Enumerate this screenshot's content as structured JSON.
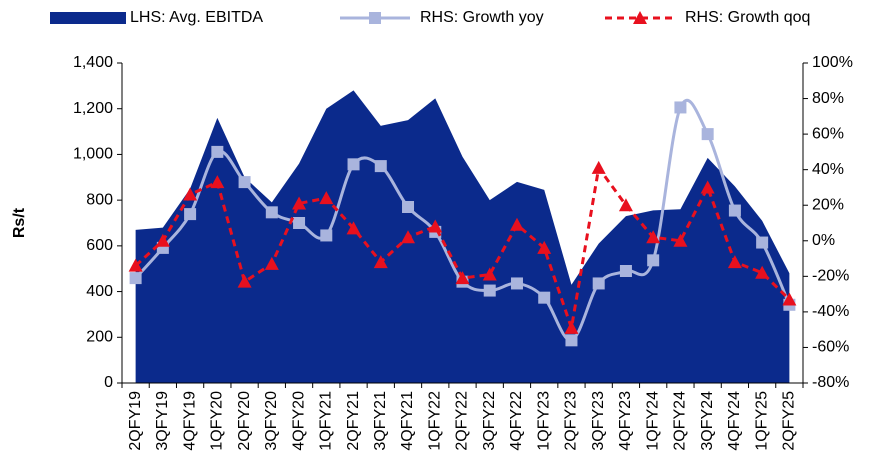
{
  "chart_data": {
    "type": "area-line",
    "y_label": "Rs/t",
    "categories": [
      "2QFY19",
      "3QFY19",
      "4QFY19",
      "1QFY20",
      "2QFY20",
      "3QFY20",
      "4QFY20",
      "1QFY21",
      "2QFY21",
      "3QFY21",
      "4QFY21",
      "1QFY22",
      "2QFY22",
      "3QFY22",
      "4QFY22",
      "1QFY23",
      "2QFY23",
      "3QFY23",
      "4QFY23",
      "1QFY24",
      "2QFY24",
      "3QFY24",
      "4QFY24",
      "1QFY25",
      "2QFY25"
    ],
    "series": [
      {
        "name": "LHS: Avg. EBITDA",
        "type": "area",
        "color": "#0b2a8c",
        "axis": "y",
        "values": [
          670,
          680,
          850,
          1160,
          900,
          790,
          960,
          1200,
          1280,
          1125,
          1150,
          1245,
          990,
          800,
          880,
          845,
          430,
          610,
          730,
          755,
          760,
          985,
          860,
          710,
          480
        ]
      },
      {
        "name": "RHS: Growth yoy",
        "type": "line",
        "color": "#a9b4dd",
        "axis": "y2",
        "marker": "square",
        "smooth": true,
        "values": [
          -21,
          -4,
          15,
          50,
          33,
          16,
          10,
          3,
          43,
          42,
          19,
          5,
          -23,
          -28,
          -24,
          -32,
          -56,
          -24,
          -17,
          -11,
          75,
          60,
          17,
          -1,
          -36
        ]
      },
      {
        "name": "RHS: Growth qoq",
        "type": "line",
        "color": "#e8101e",
        "axis": "y2",
        "marker": "triangle",
        "dashed": true,
        "values": [
          -14,
          0,
          26,
          33,
          -23,
          -13,
          21,
          24,
          7,
          -12,
          2,
          8,
          -21,
          -19,
          9,
          -4,
          -49,
          41,
          20,
          2,
          0,
          30,
          -12,
          -18,
          -33
        ]
      }
    ],
    "ylim": [
      0,
      1400
    ],
    "yticks": [
      0,
      200,
      400,
      600,
      800,
      {
        "value": 1000,
        "label": "1,000"
      },
      {
        "value": 1200,
        "label": "1,200"
      },
      {
        "value": 1400,
        "label": "1,400"
      }
    ],
    "y2lim": [
      -80,
      100
    ],
    "y2ticks": [
      {
        "value": -80,
        "label": "-80%"
      },
      {
        "value": -60,
        "label": "-60%"
      },
      {
        "value": -40,
        "label": "-40%"
      },
      {
        "value": -20,
        "label": "-20%"
      },
      {
        "value": 0,
        "label": "0%"
      },
      {
        "value": 20,
        "label": "20%"
      },
      {
        "value": 40,
        "label": "40%"
      },
      {
        "value": 60,
        "label": "60%"
      },
      {
        "value": 80,
        "label": "80%"
      },
      {
        "value": 100,
        "label": "100%"
      }
    ],
    "legend": "top",
    "grid": false
  }
}
